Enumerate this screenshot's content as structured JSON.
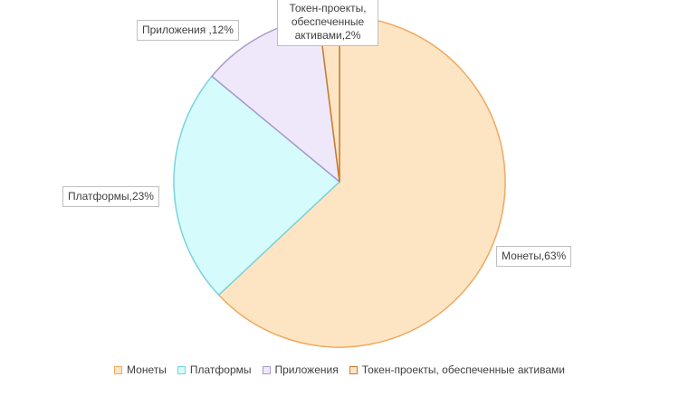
{
  "chart_data": {
    "type": "pie",
    "title": "",
    "legend_position": "bottom",
    "series": [
      {
        "name": "",
        "categories": [
          "Монеты",
          "Платформы",
          "Приложения",
          "Токен-проекты, обеспеченные активами"
        ],
        "values": [
          63,
          23,
          12,
          2
        ]
      }
    ],
    "data_labels": [
      "Монеты,63%",
      "Платформы,23%",
      "Приложения ,12%",
      "Токен-проекты, обеспеченные активами,2%"
    ],
    "colors": {
      "fill": [
        "#fde5c4",
        "#d6fbfd",
        "#efe8fb",
        "#fde5c4"
      ],
      "stroke": [
        "#f0a860",
        "#79d3de",
        "#a89bc8",
        "#c87a2c"
      ]
    }
  }
}
